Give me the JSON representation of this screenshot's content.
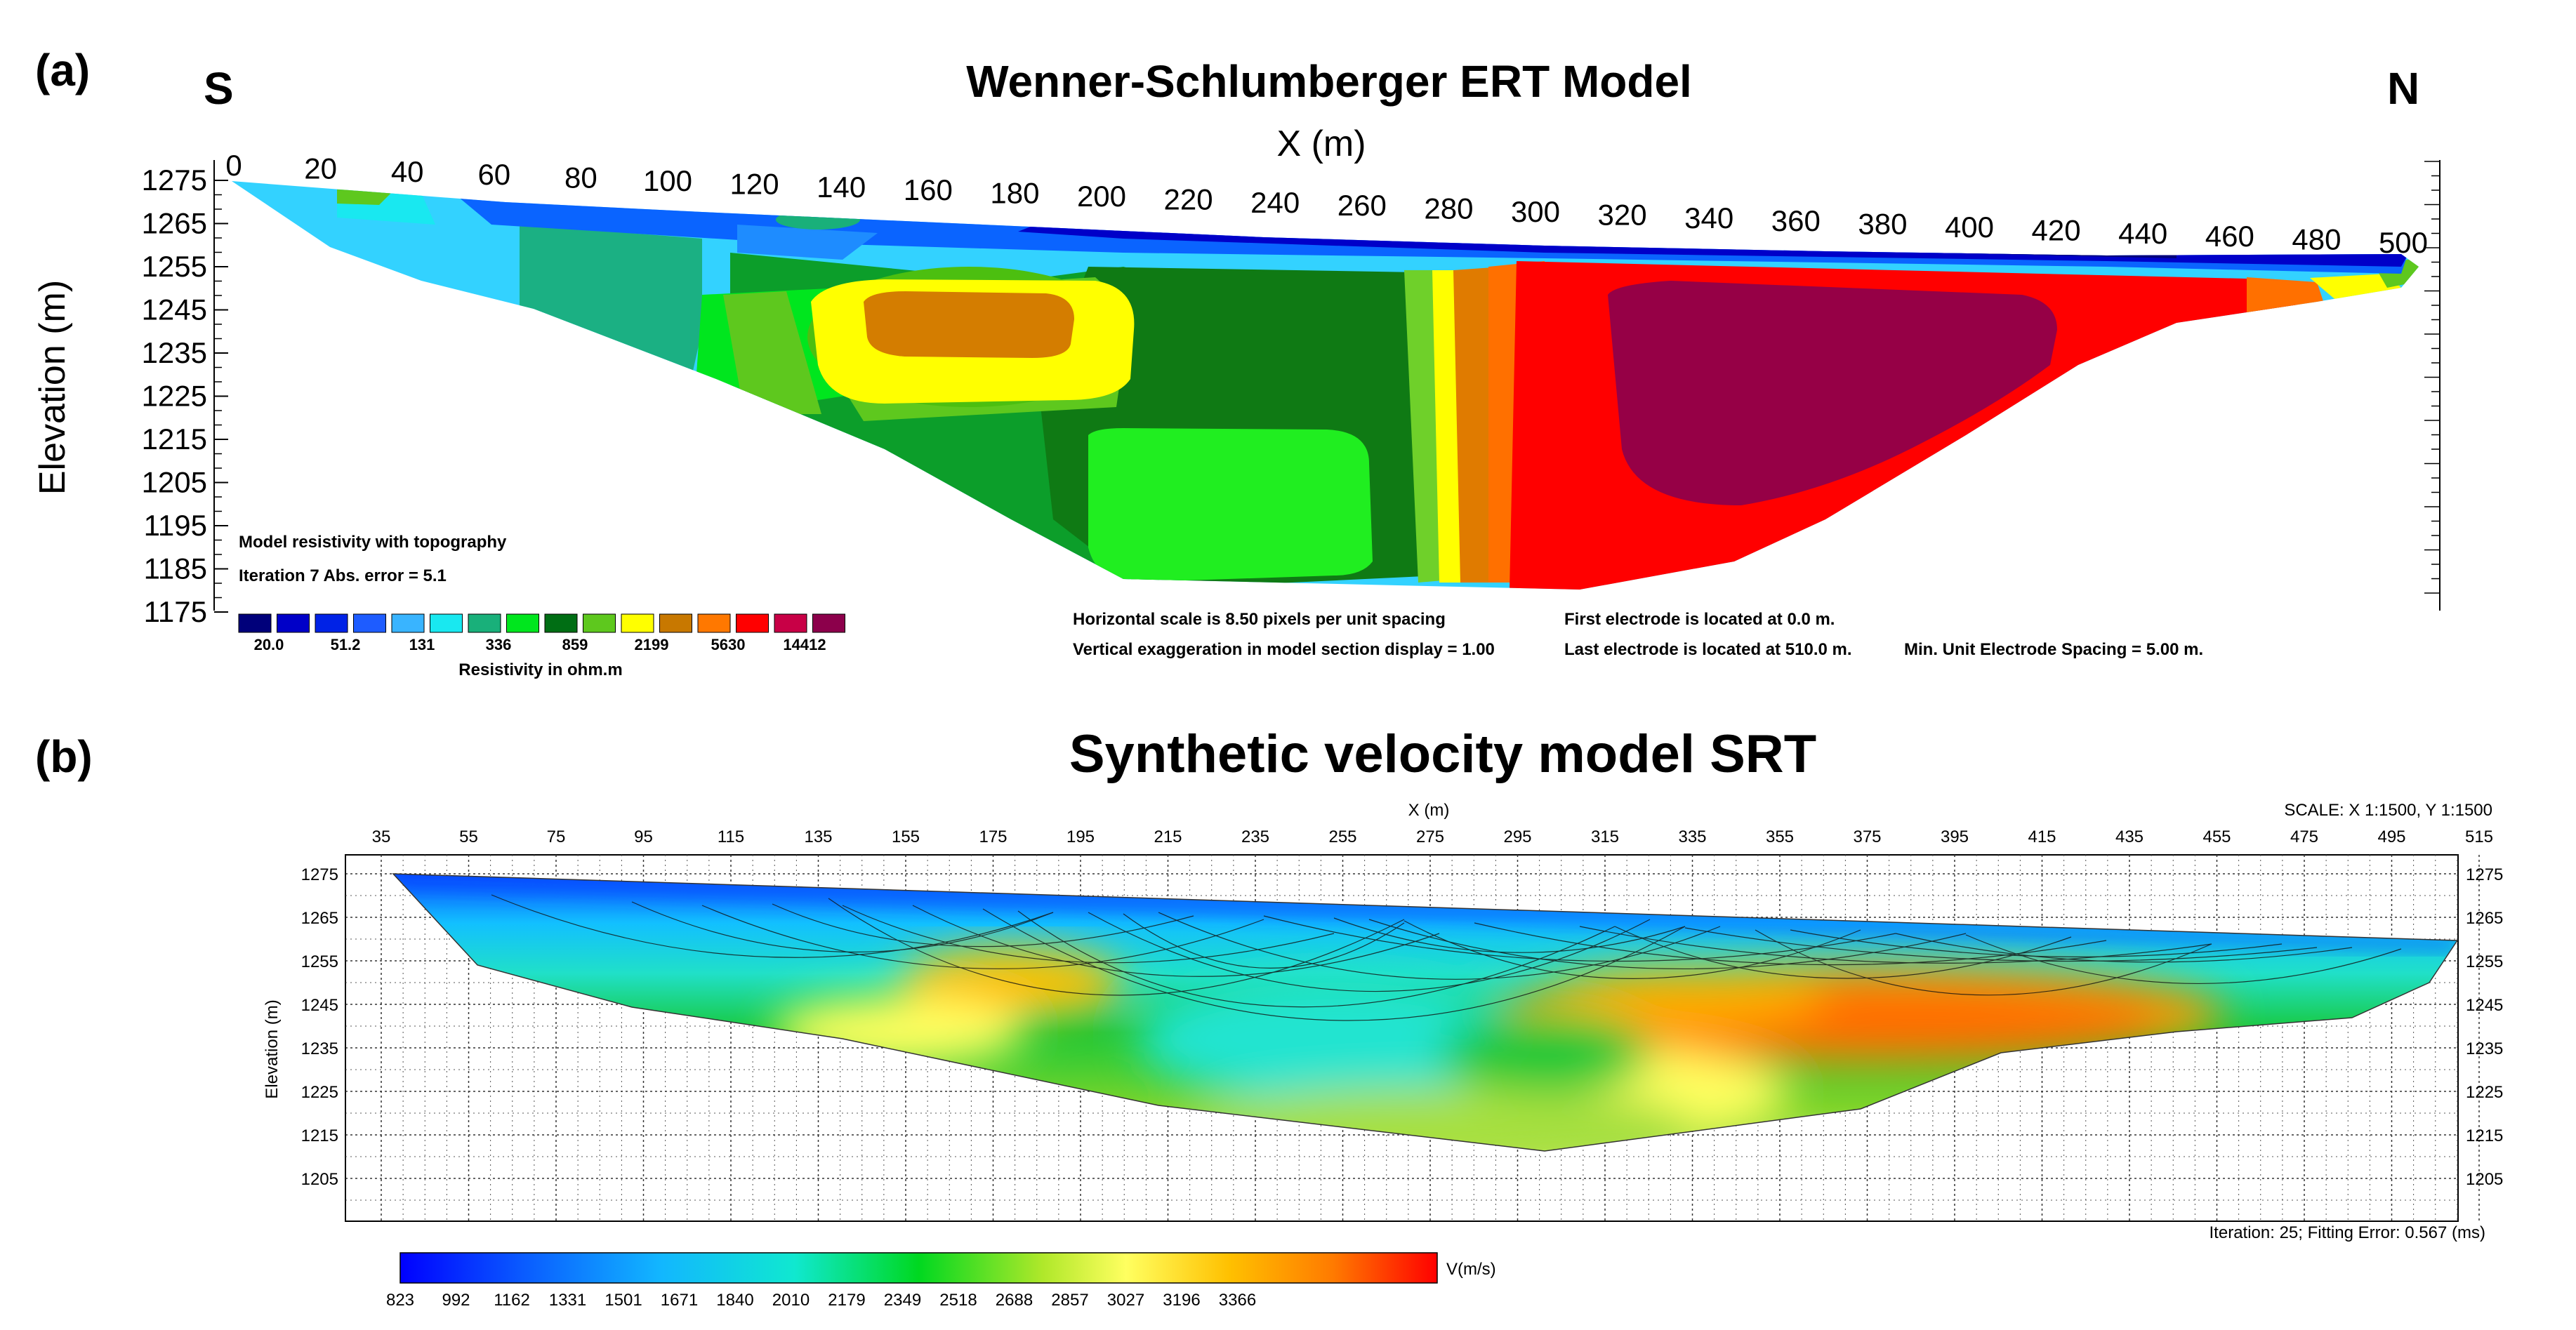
{
  "panel_a": {
    "label": "(a)",
    "left_dir": "S",
    "right_dir": "N",
    "title": "Wenner-Schlumberger ERT Model",
    "xlabel": "X (m)",
    "ylabel": "Elevation (m)",
    "x_ticks": [
      "0",
      "20",
      "40",
      "60",
      "80",
      "100",
      "120",
      "140",
      "160",
      "180",
      "200",
      "220",
      "240",
      "260",
      "280",
      "300",
      "320",
      "340",
      "360",
      "380",
      "400",
      "420",
      "440",
      "460",
      "480",
      "500"
    ],
    "y_ticks": [
      "1275",
      "1265",
      "1255",
      "1245",
      "1235",
      "1225",
      "1215",
      "1205",
      "1195",
      "1185",
      "1175"
    ],
    "info_line1": "Model resistivity with topography",
    "info_line2": "Iteration 7 Abs. error = 5.1",
    "colorbar_colors": [
      "#00007a",
      "#0000c8",
      "#0022e6",
      "#1e5cff",
      "#39b4ff",
      "#19e8f0",
      "#19b07a",
      "#00e61e",
      "#006e14",
      "#5ec81e",
      "#ffff00",
      "#c87800",
      "#ff7800",
      "#ff0000",
      "#c80046",
      "#8c004b"
    ],
    "colorbar_labels": [
      "20.0",
      "51.2",
      "131",
      "336",
      "859",
      "2199",
      "5630",
      "14412"
    ],
    "colorbar_title": "Resistivity in ohm.m",
    "note_h_scale": "Horizontal scale is 8.50 pixels per unit spacing",
    "note_v_exag": "Vertical exaggeration in model section display = 1.00",
    "note_first": "First electrode is located at 0.0  m.",
    "note_last": "Last electrode is located at 510.0 m.",
    "note_spacing": "Min. Unit Electrode Spacing = 5.00 m."
  },
  "panel_b": {
    "label": "(b)",
    "title": "Synthetic velocity model SRT",
    "xlabel": "X (m)",
    "scale": "SCALE: X 1:1500, Y 1:1500",
    "ylabel": "Elevation (m)",
    "x_ticks": [
      "35",
      "55",
      "75",
      "95",
      "115",
      "135",
      "155",
      "175",
      "195",
      "215",
      "235",
      "255",
      "275",
      "295",
      "315",
      "335",
      "355",
      "375",
      "395",
      "415",
      "435",
      "455",
      "475",
      "495",
      "515"
    ],
    "y_ticks": [
      "1275",
      "1265",
      "1255",
      "1245",
      "1235",
      "1225",
      "1215",
      "1205"
    ],
    "iteration": "Iteration: 25; Fitting Error: 0.567 (ms)",
    "colorbar_unit": "V(m/s)",
    "colorbar_labels": [
      "823",
      "992",
      "1162",
      "1331",
      "1501",
      "1671",
      "1840",
      "2010",
      "2179",
      "2349",
      "2518",
      "2688",
      "2857",
      "3027",
      "3196",
      "3366"
    ]
  }
}
